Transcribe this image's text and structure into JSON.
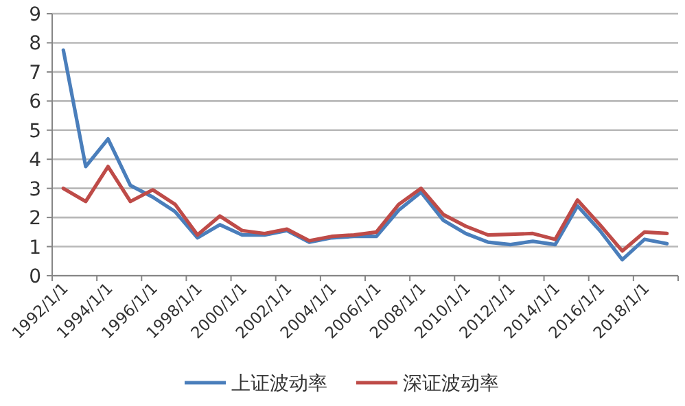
{
  "chart_data": {
    "type": "line",
    "categories": [
      "1992/1/1",
      null,
      "1994/1/1",
      null,
      "1996/1/1",
      null,
      "1998/1/1",
      null,
      "2000/1/1",
      null,
      "2002/1/1",
      null,
      "2004/1/1",
      null,
      "2006/1/1",
      null,
      "2008/1/1",
      null,
      "2010/1/1",
      null,
      "2012/1/1",
      null,
      "2014/1/1",
      null,
      "2016/1/1",
      null,
      "2018/1/1",
      null
    ],
    "series": [
      {
        "name": "上证波动率",
        "color": "#4a7ebb",
        "values": [
          7.75,
          3.75,
          4.7,
          3.1,
          2.7,
          2.2,
          1.3,
          1.75,
          1.4,
          1.4,
          1.55,
          1.15,
          1.3,
          1.35,
          1.35,
          2.25,
          2.87,
          1.9,
          1.45,
          1.15,
          1.07,
          1.18,
          1.07,
          2.4,
          1.55,
          0.55,
          1.25,
          1.1
        ]
      },
      {
        "name": "深证波动率",
        "color": "#be4b48",
        "values": [
          3.0,
          2.55,
          3.75,
          2.55,
          2.95,
          2.45,
          1.4,
          2.05,
          1.55,
          1.45,
          1.6,
          1.2,
          1.35,
          1.4,
          1.5,
          2.45,
          3.0,
          2.1,
          1.7,
          1.4,
          1.42,
          1.45,
          1.25,
          2.6,
          1.75,
          0.85,
          1.5,
          1.45
        ]
      }
    ],
    "ylim": [
      0,
      9
    ],
    "yticks": [
      0,
      1,
      2,
      3,
      4,
      5,
      6,
      7,
      8,
      9
    ],
    "grid": "y",
    "legend": "bottom",
    "marker": "none",
    "line_style": "solid"
  }
}
